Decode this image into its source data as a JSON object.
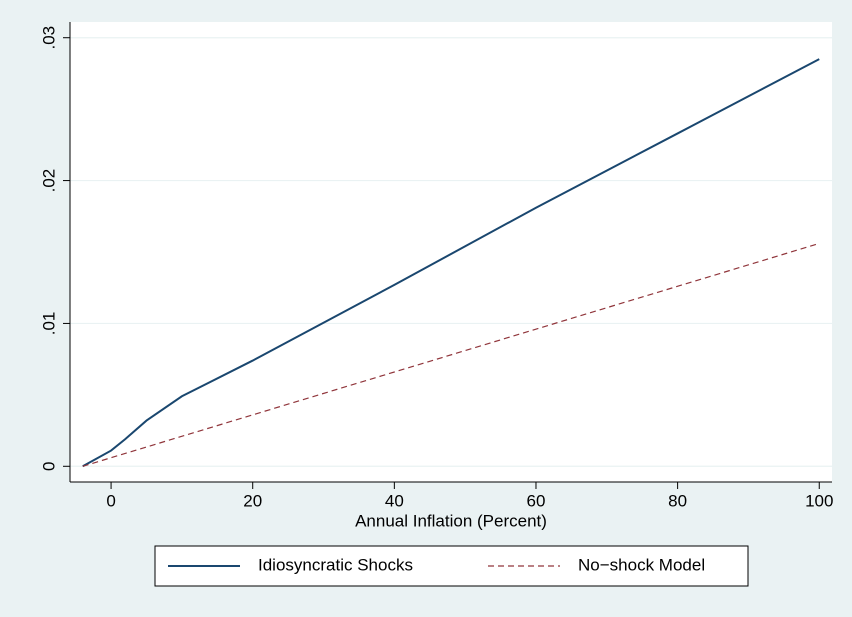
{
  "chart_data": {
    "type": "line",
    "x_label": "Annual Inflation (Percent)",
    "xlim": [
      -5.8,
      101.8
    ],
    "xticks": [
      0,
      20,
      40,
      60,
      80,
      100
    ],
    "ylim": [
      -0.0011,
      0.0311
    ],
    "yticks": [
      0,
      {
        "value": 0.01,
        "label": ".01"
      },
      {
        "value": 0.02,
        "label": ".02"
      },
      {
        "value": 0.03,
        "label": ".03"
      }
    ],
    "grid": true,
    "series": [
      {
        "name": "Idiosyncratic Shocks",
        "color": "#1a476f",
        "dash": false,
        "x": [
          -4,
          0,
          2,
          5,
          10,
          20,
          40,
          60,
          80,
          100
        ],
        "values": [
          0,
          0.0011,
          0.0019,
          0.0032,
          0.0049,
          0.0074,
          0.0127,
          0.0181,
          0.0233,
          0.0285
        ]
      },
      {
        "name": "No−shock Model",
        "color": "#90353b",
        "dash": true,
        "x": [
          -4,
          0,
          50,
          100
        ],
        "values": [
          0,
          0.0006,
          0.0081,
          0.0156
        ]
      }
    ]
  }
}
